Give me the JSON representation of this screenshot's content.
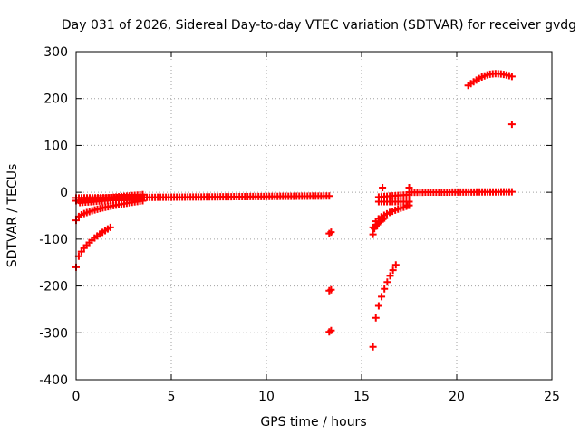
{
  "chart_data": {
    "type": "scatter",
    "title": "Day 031 of 2026, Sidereal Day-to-day VTEC variation (SDTVAR) for receiver gvdg",
    "xlabel": "GPS time / hours",
    "ylabel": "SDTVAR / TECUs",
    "xlim": [
      0,
      25
    ],
    "ylim": [
      -400,
      300
    ],
    "xticks": [
      0,
      5,
      10,
      15,
      20,
      25
    ],
    "yticks": [
      -400,
      -300,
      -200,
      -100,
      0,
      100,
      200,
      300
    ],
    "xtick_labels": [
      "0",
      "5",
      "10",
      "15",
      "20",
      "25"
    ],
    "ytick_labels": [
      "-400",
      "-300",
      "-200",
      "-100",
      "0",
      "100",
      "200",
      "300"
    ],
    "grid": true,
    "marker": "plus",
    "color": "#ff0000",
    "segments": [
      {
        "from": [
          0.0,
          -12
        ],
        "to": [
          13.3,
          -8
        ],
        "kind": "line"
      },
      {
        "from": [
          0.0,
          -18
        ],
        "to": [
          3.5,
          -5
        ],
        "kind": "line"
      },
      {
        "from": [
          0.2,
          -22
        ],
        "to": [
          3.4,
          -12
        ],
        "kind": "line"
      },
      {
        "from": [
          0.0,
          -60
        ],
        "to": [
          3.5,
          -18
        ],
        "kind": "curve"
      },
      {
        "from": [
          0.0,
          -160
        ],
        "to": [
          1.8,
          -75
        ],
        "kind": "curve"
      },
      {
        "from": [
          15.9,
          -20
        ],
        "to": [
          17.5,
          -20
        ],
        "kind": "line"
      },
      {
        "from": [
          15.9,
          -10
        ],
        "to": [
          17.5,
          -5
        ],
        "kind": "line"
      },
      {
        "from": [
          15.6,
          -75
        ],
        "to": [
          17.5,
          -28
        ],
        "kind": "curve"
      },
      {
        "from": [
          15.6,
          -90
        ],
        "to": [
          16.2,
          -55
        ],
        "kind": "curve"
      },
      {
        "from": [
          15.6,
          -330
        ],
        "to": [
          16.8,
          -155
        ],
        "kind": "curve"
      },
      {
        "from": [
          17.5,
          0
        ],
        "to": [
          22.9,
          1
        ],
        "kind": "line"
      },
      {
        "from": [
          20.6,
          228
        ],
        "to": [
          22.9,
          247
        ],
        "kind": "arc"
      }
    ],
    "points": [
      [
        13.4,
        -85
      ],
      [
        13.3,
        -88
      ],
      [
        13.4,
        -208
      ],
      [
        13.3,
        -210
      ],
      [
        13.4,
        -295
      ],
      [
        13.3,
        -298
      ],
      [
        22.9,
        145
      ],
      [
        17.5,
        10
      ],
      [
        17.4,
        -28
      ],
      [
        16.1,
        10
      ]
    ]
  }
}
